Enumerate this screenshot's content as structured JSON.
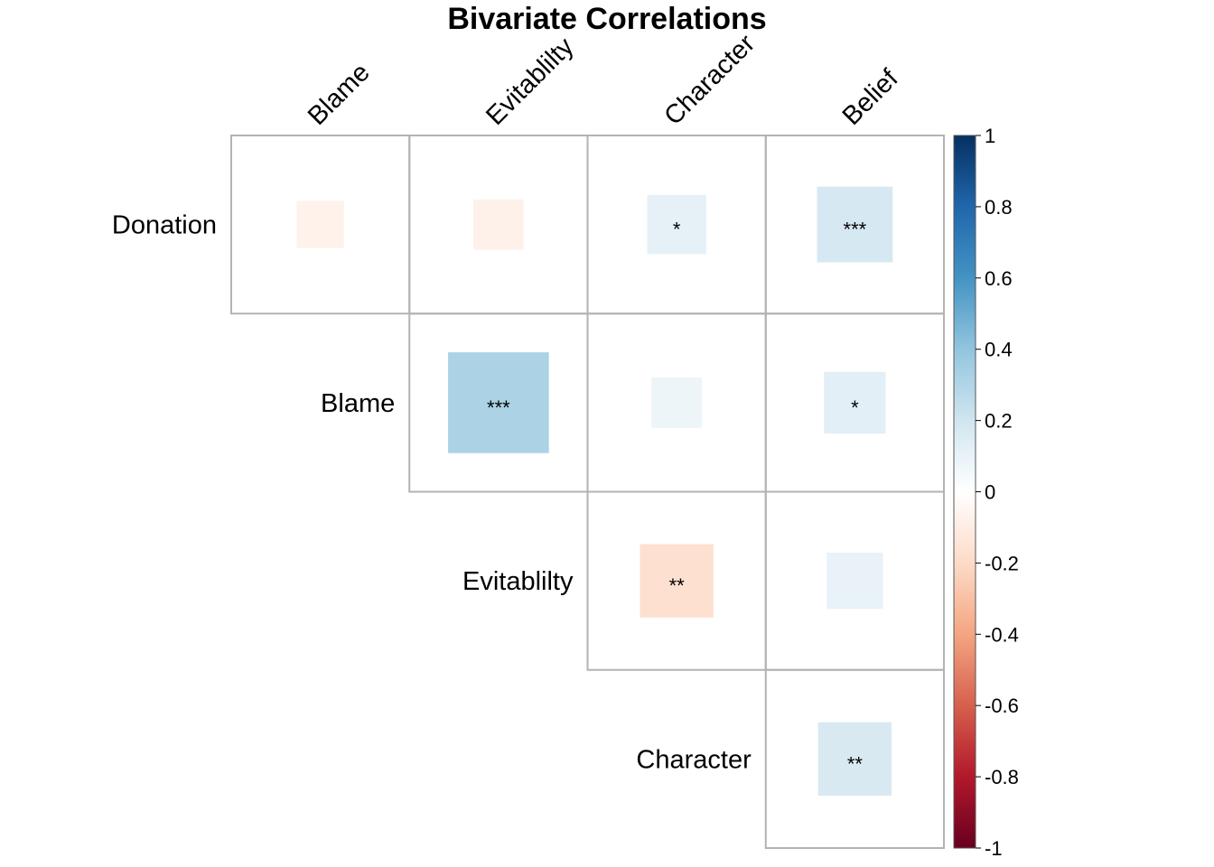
{
  "chart_data": {
    "type": "heatmap",
    "subtype": "correlation-matrix-upper",
    "title": "Bivariate Correlations",
    "column_labels": [
      "Blame",
      "Evitablilty",
      "Character",
      "Belief"
    ],
    "row_labels": [
      "Donation",
      "Blame",
      "Evitablilty",
      "Character"
    ],
    "cells": [
      {
        "row": 0,
        "col": 0,
        "value": -0.07,
        "stars": ""
      },
      {
        "row": 0,
        "col": 1,
        "value": -0.08,
        "stars": ""
      },
      {
        "row": 0,
        "col": 2,
        "value": 0.11,
        "stars": "*"
      },
      {
        "row": 0,
        "col": 3,
        "value": 0.18,
        "stars": "***"
      },
      {
        "row": 1,
        "col": 1,
        "value": 0.32,
        "stars": "***"
      },
      {
        "row": 1,
        "col": 2,
        "value": 0.08,
        "stars": ""
      },
      {
        "row": 1,
        "col": 3,
        "value": 0.12,
        "stars": "*"
      },
      {
        "row": 2,
        "col": 2,
        "value": -0.17,
        "stars": "**"
      },
      {
        "row": 2,
        "col": 3,
        "value": 0.1,
        "stars": ""
      },
      {
        "row": 3,
        "col": 3,
        "value": 0.17,
        "stars": "**"
      }
    ],
    "colorbar": {
      "range": [
        -1,
        1
      ],
      "ticks": [
        "1",
        "0.8",
        "0.6",
        "0.4",
        "0.2",
        "0",
        "-0.2",
        "-0.4",
        "-0.6",
        "-0.8",
        "-1"
      ],
      "colors": [
        "#67001F",
        "#B2182B",
        "#D6604D",
        "#F4A582",
        "#FDDBC7",
        "#FFFFFF",
        "#D1E5F0",
        "#92C5DE",
        "#4393C3",
        "#2166AC",
        "#053061"
      ],
      "placement": "right"
    }
  }
}
